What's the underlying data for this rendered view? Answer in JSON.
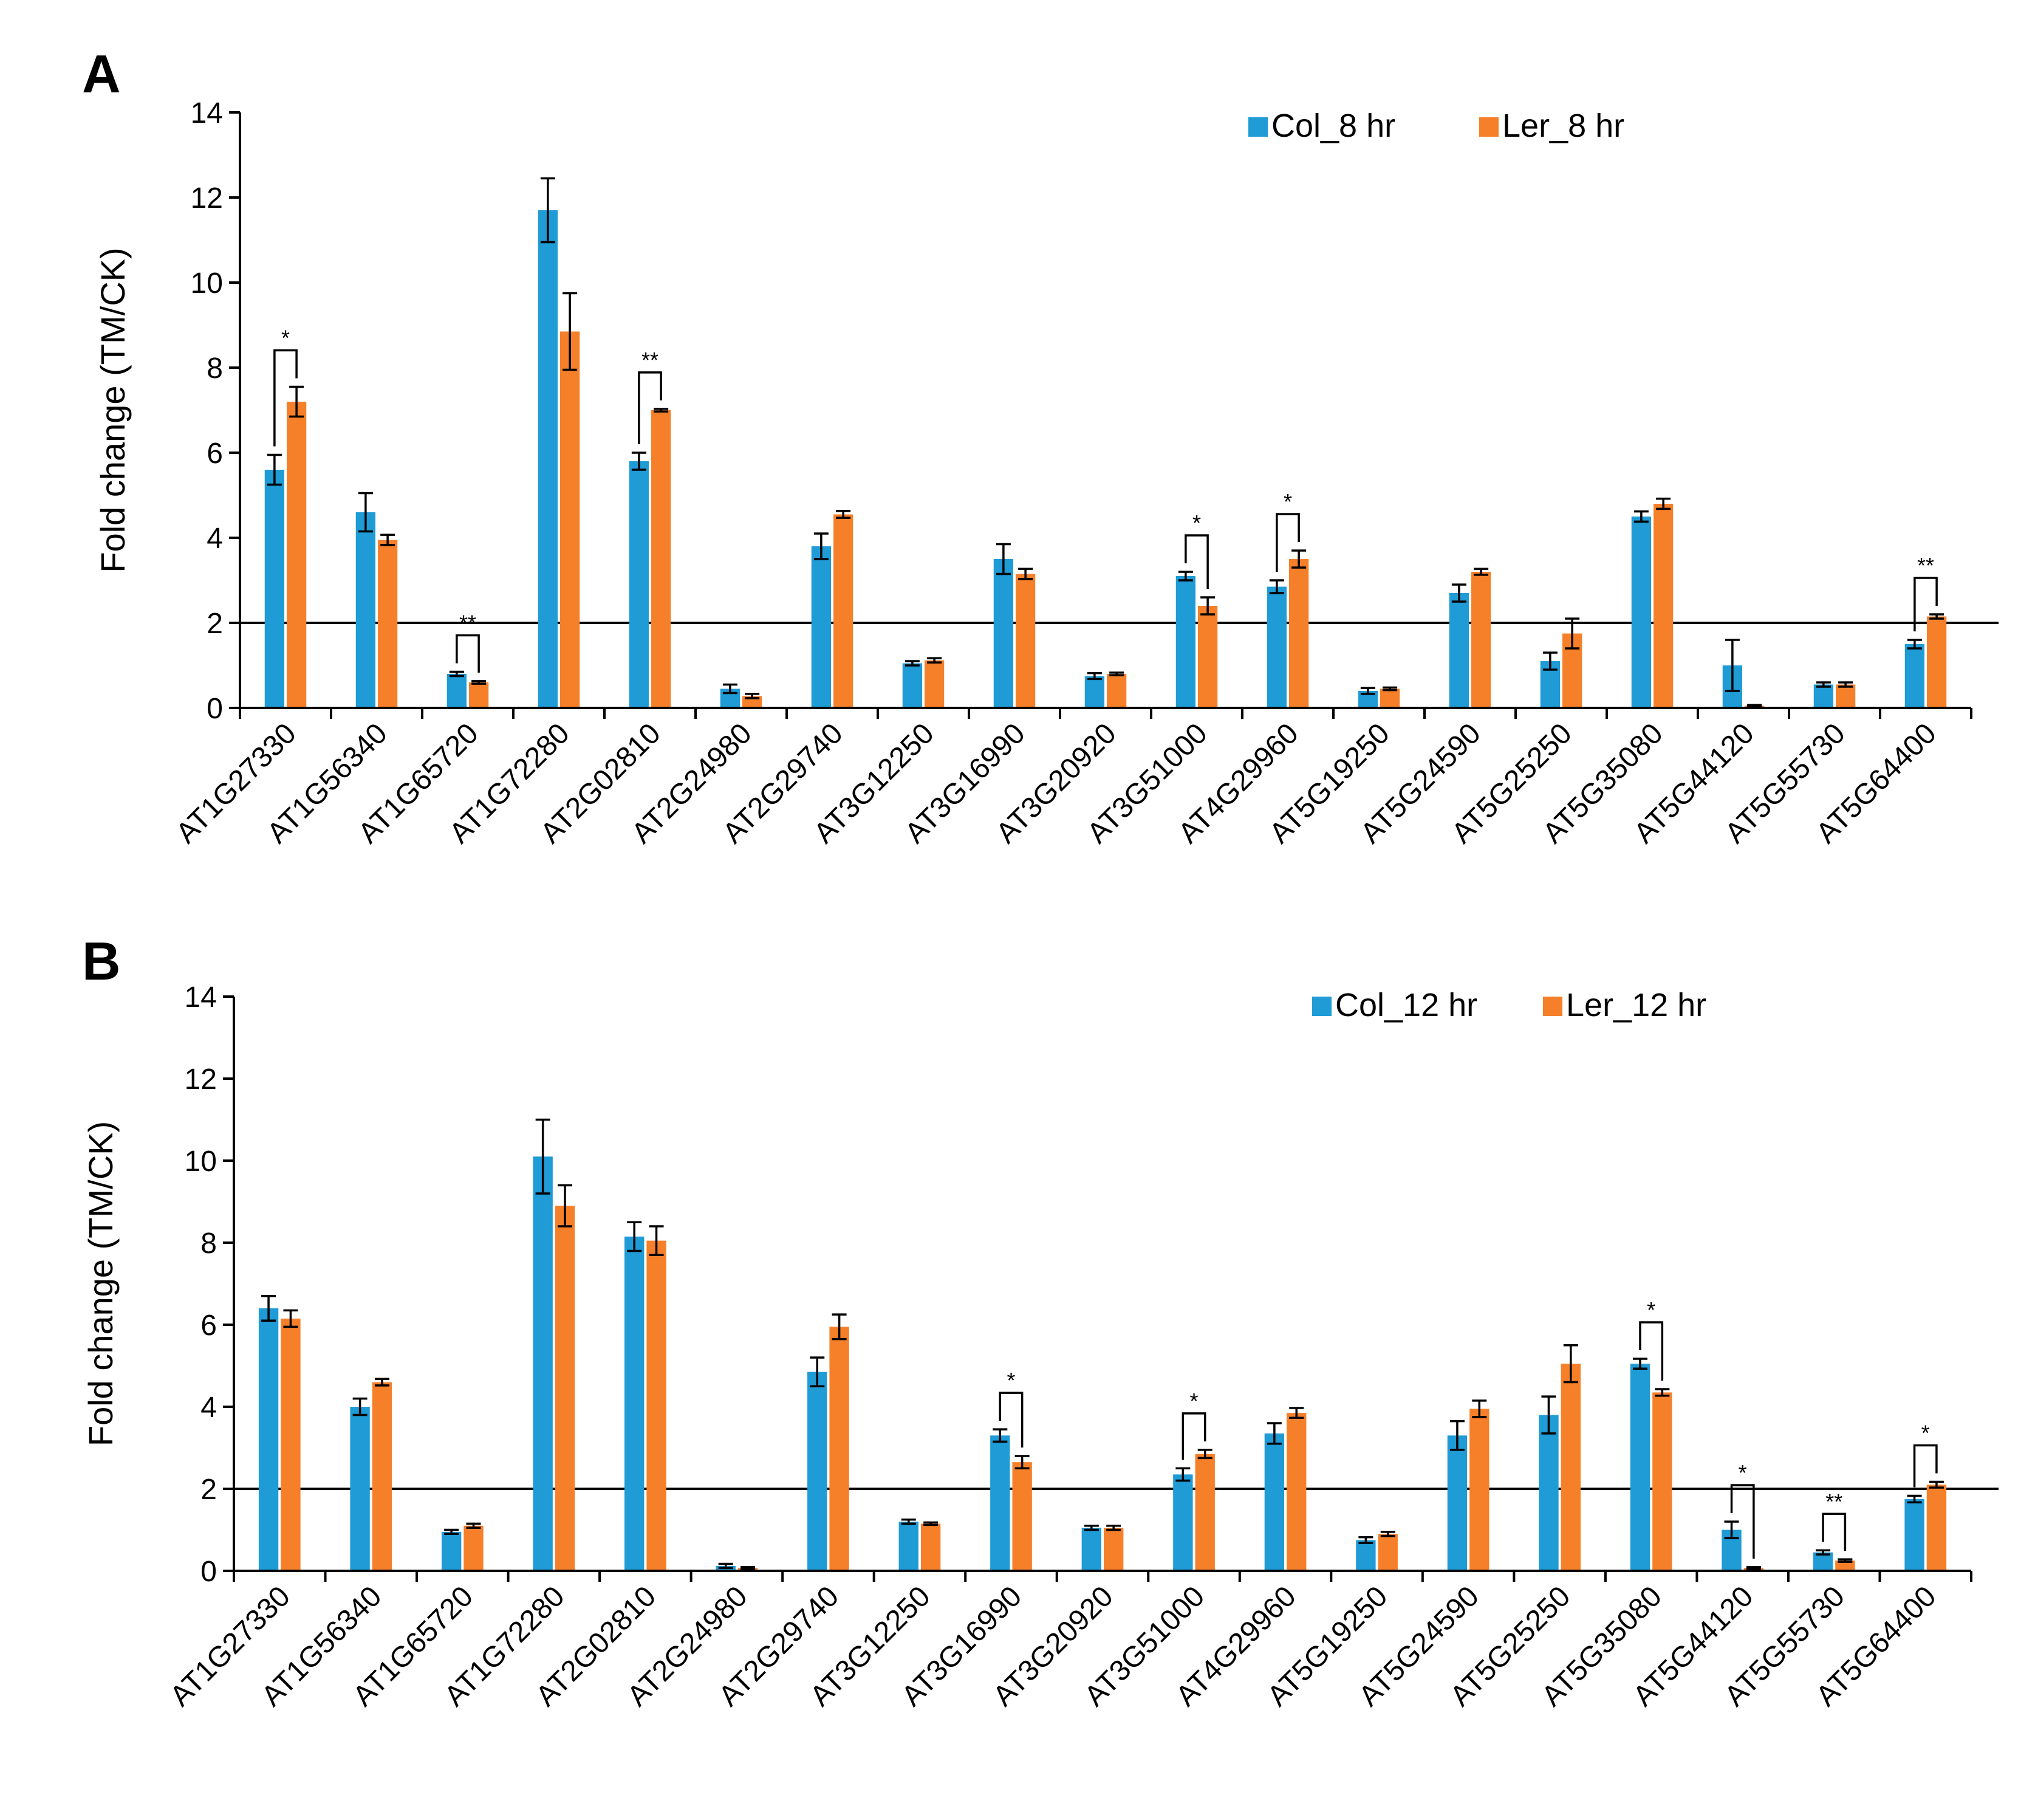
{
  "chart_data": [
    {
      "type": "bar",
      "panel": "A",
      "ylabel": "Fold change (TM/CK)",
      "ylim": [
        0,
        14
      ],
      "yticks": [
        0,
        2,
        4,
        6,
        8,
        10,
        12,
        14
      ],
      "reference_line": 2,
      "categories": [
        "AT1G27330",
        "AT1G56340",
        "AT1G65720",
        "AT1G72280",
        "AT2G02810",
        "AT2G24980",
        "AT2G29740",
        "AT3G12250",
        "AT3G16990",
        "AT3G20920",
        "AT3G51000",
        "AT4G29960",
        "AT5G19250",
        "AT5G24590",
        "AT5G25250",
        "AT5G35080",
        "AT5G44120",
        "AT5G55730",
        "AT5G64400"
      ],
      "legend_placement": "top-right",
      "series": [
        {
          "name": "Col_8 hr",
          "color": "#1f9bd6",
          "values": [
            5.6,
            4.6,
            0.8,
            11.7,
            5.8,
            0.45,
            3.8,
            1.05,
            3.5,
            0.75,
            3.1,
            2.85,
            0.4,
            2.7,
            1.1,
            4.5,
            1.0,
            0.55,
            1.5
          ],
          "errors": [
            0.35,
            0.45,
            0.05,
            0.75,
            0.2,
            0.1,
            0.3,
            0.05,
            0.35,
            0.07,
            0.1,
            0.15,
            0.07,
            0.2,
            0.2,
            0.12,
            0.6,
            0.05,
            0.1
          ]
        },
        {
          "name": "Ler_8 hr",
          "color": "#f6802a",
          "values": [
            7.2,
            3.95,
            0.6,
            8.85,
            7.0,
            0.28,
            4.55,
            1.12,
            3.15,
            0.8,
            2.4,
            3.5,
            0.45,
            3.2,
            1.75,
            4.8,
            0.05,
            0.55,
            2.15
          ],
          "errors": [
            0.35,
            0.12,
            0.03,
            0.9,
            0.03,
            0.05,
            0.08,
            0.05,
            0.12,
            0.03,
            0.2,
            0.2,
            0.03,
            0.07,
            0.35,
            0.12,
            0.02,
            0.05,
            0.05
          ]
        }
      ],
      "significance": [
        {
          "index": 0,
          "label": "*"
        },
        {
          "index": 2,
          "label": "**"
        },
        {
          "index": 4,
          "label": "**"
        },
        {
          "index": 10,
          "label": "*"
        },
        {
          "index": 11,
          "label": "*"
        },
        {
          "index": 18,
          "label": "**"
        }
      ]
    },
    {
      "type": "bar",
      "panel": "B",
      "ylabel": "Fold change (TM/CK)",
      "ylim": [
        0,
        14
      ],
      "yticks": [
        0,
        2,
        4,
        6,
        8,
        10,
        12,
        14
      ],
      "reference_line": 2,
      "categories": [
        "AT1G27330",
        "AT1G56340",
        "AT1G65720",
        "AT1G72280",
        "AT2G02810",
        "AT2G24980",
        "AT2G29740",
        "AT3G12250",
        "AT3G16990",
        "AT3G20920",
        "AT3G51000",
        "AT4G29960",
        "AT5G19250",
        "AT5G24590",
        "AT5G25250",
        "AT5G35080",
        "AT5G44120",
        "AT5G55730",
        "AT5G64400"
      ],
      "legend_placement": "top-right",
      "series": [
        {
          "name": "Col_12 hr",
          "color": "#1f9bd6",
          "values": [
            6.4,
            4.0,
            0.95,
            10.1,
            8.15,
            0.12,
            4.85,
            1.2,
            3.3,
            1.05,
            2.35,
            3.35,
            0.75,
            3.3,
            3.8,
            5.05,
            1.0,
            0.45,
            1.75
          ],
          "errors": [
            0.3,
            0.2,
            0.05,
            0.9,
            0.35,
            0.05,
            0.35,
            0.05,
            0.15,
            0.05,
            0.15,
            0.25,
            0.07,
            0.35,
            0.45,
            0.12,
            0.2,
            0.05,
            0.08
          ]
        },
        {
          "name": "Ler_12 hr",
          "color": "#f6802a",
          "values": [
            6.15,
            4.6,
            1.1,
            8.9,
            8.05,
            0.07,
            5.95,
            1.15,
            2.65,
            1.05,
            2.85,
            3.85,
            0.9,
            3.95,
            5.05,
            4.35,
            0.07,
            0.25,
            2.1
          ],
          "errors": [
            0.2,
            0.08,
            0.05,
            0.5,
            0.35,
            0.02,
            0.3,
            0.03,
            0.15,
            0.05,
            0.1,
            0.12,
            0.05,
            0.2,
            0.45,
            0.08,
            0.02,
            0.03,
            0.07
          ]
        }
      ],
      "significance": [
        {
          "index": 8,
          "label": "*"
        },
        {
          "index": 10,
          "label": "*"
        },
        {
          "index": 15,
          "label": "*"
        },
        {
          "index": 16,
          "label": "*"
        },
        {
          "index": 17,
          "label": "**"
        },
        {
          "index": 18,
          "label": "*"
        }
      ]
    }
  ]
}
